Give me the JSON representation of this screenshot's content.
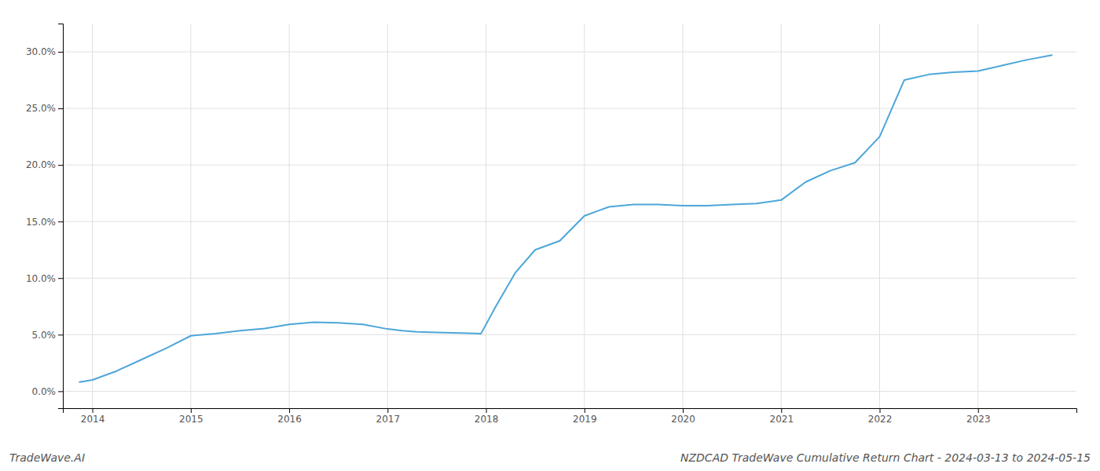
{
  "chart_data": {
    "type": "line",
    "title": "NZDCAD TradeWave Cumulative Return Chart - 2024-03-13 to 2024-05-15",
    "annotations": [
      "TradeWave.AI"
    ],
    "x": [
      2013.87,
      2014.0,
      2014.25,
      2014.5,
      2014.75,
      2015.0,
      2015.25,
      2015.5,
      2015.75,
      2016.0,
      2016.25,
      2016.5,
      2016.75,
      2017.0,
      2017.15,
      2017.3,
      2017.5,
      2017.75,
      2017.95,
      2018.1,
      2018.3,
      2018.5,
      2018.75,
      2019.0,
      2019.25,
      2019.5,
      2019.75,
      2020.0,
      2020.25,
      2020.5,
      2020.75,
      2021.0,
      2021.25,
      2021.5,
      2021.75,
      2022.0,
      2022.1,
      2022.25,
      2022.5,
      2022.75,
      2023.0,
      2023.25,
      2023.5,
      2023.75
    ],
    "values": [
      0.8,
      1.0,
      1.8,
      2.8,
      3.8,
      4.9,
      5.1,
      5.35,
      5.55,
      5.9,
      6.1,
      6.05,
      5.9,
      5.5,
      5.35,
      5.25,
      5.2,
      5.15,
      5.1,
      7.5,
      10.5,
      12.5,
      13.3,
      15.5,
      16.3,
      16.5,
      16.5,
      16.4,
      16.4,
      16.5,
      16.6,
      16.9,
      18.5,
      19.5,
      20.2,
      22.5,
      24.5,
      27.5,
      28.0,
      28.2,
      28.3,
      28.8,
      29.3,
      29.7
    ],
    "color": "#4da6d9",
    "xlim": [
      2013.7,
      2024.0
    ],
    "ylim": [
      -1.5,
      32.5
    ],
    "xticks": [
      2014,
      2015,
      2016,
      2017,
      2018,
      2019,
      2020,
      2021,
      2022,
      2023
    ],
    "yticks": [
      {
        "value": 0.0,
        "label": "0.0%"
      },
      {
        "value": 5.0,
        "label": "5.0%"
      },
      {
        "value": 10.0,
        "label": "10.0%"
      },
      {
        "value": 15.0,
        "label": "15.0%"
      },
      {
        "value": 20.0,
        "label": "20.0%"
      },
      {
        "value": 25.0,
        "label": "25.0%"
      },
      {
        "value": 30.0,
        "label": "30.0%"
      }
    ],
    "grid": true
  }
}
